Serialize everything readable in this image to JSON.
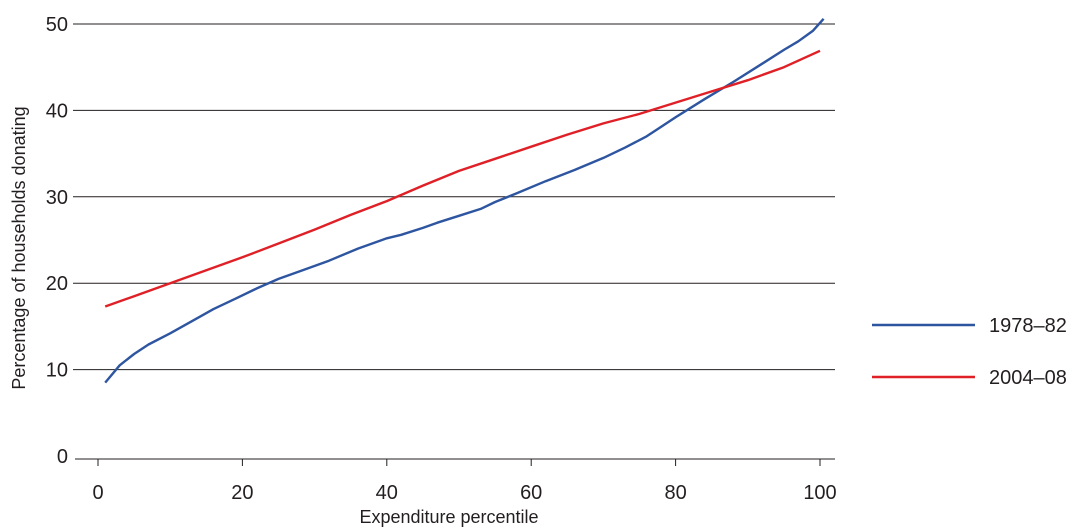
{
  "chart_data": {
    "type": "line",
    "title": "",
    "xlabel": "Expenditure percentile",
    "ylabel": "Percentage of households donating",
    "xlim": [
      0,
      100
    ],
    "ylim": [
      0,
      50
    ],
    "xticks": [
      0,
      20,
      40,
      60,
      80,
      100
    ],
    "yticks": [
      0,
      10,
      20,
      30,
      40,
      50
    ],
    "grid": "horizontal",
    "legend_position": "right",
    "series": [
      {
        "name": "1978–82",
        "color": "#2e55a0",
        "x": [
          1,
          3,
          5,
          7,
          10,
          13,
          16,
          19,
          22,
          25,
          28,
          32,
          36,
          40,
          42,
          45,
          47,
          50,
          53,
          55,
          58,
          62,
          66,
          70,
          73,
          76,
          80,
          84,
          88,
          92,
          95,
          97,
          99,
          100.5
        ],
        "y": [
          8.5,
          10.5,
          11.8,
          12.9,
          14.2,
          15.6,
          17.0,
          18.2,
          19.4,
          20.5,
          21.4,
          22.6,
          24.0,
          25.2,
          25.6,
          26.4,
          27.0,
          27.8,
          28.6,
          29.4,
          30.4,
          31.8,
          33.1,
          34.5,
          35.7,
          37.0,
          39.2,
          41.3,
          43.3,
          45.4,
          47.0,
          48.0,
          49.2,
          50.6
        ]
      },
      {
        "name": "2004–08",
        "color": "#e02027",
        "x": [
          1,
          5,
          10,
          15,
          20,
          25,
          30,
          35,
          40,
          45,
          50,
          55,
          60,
          65,
          70,
          75,
          80,
          85,
          90,
          95,
          100
        ],
        "y": [
          17.3,
          18.5,
          20.0,
          21.5,
          23.0,
          24.6,
          26.2,
          27.9,
          29.5,
          31.3,
          33.0,
          34.4,
          35.8,
          37.2,
          38.5,
          39.6,
          40.9,
          42.2,
          43.5,
          45.0,
          46.9
        ]
      }
    ]
  }
}
